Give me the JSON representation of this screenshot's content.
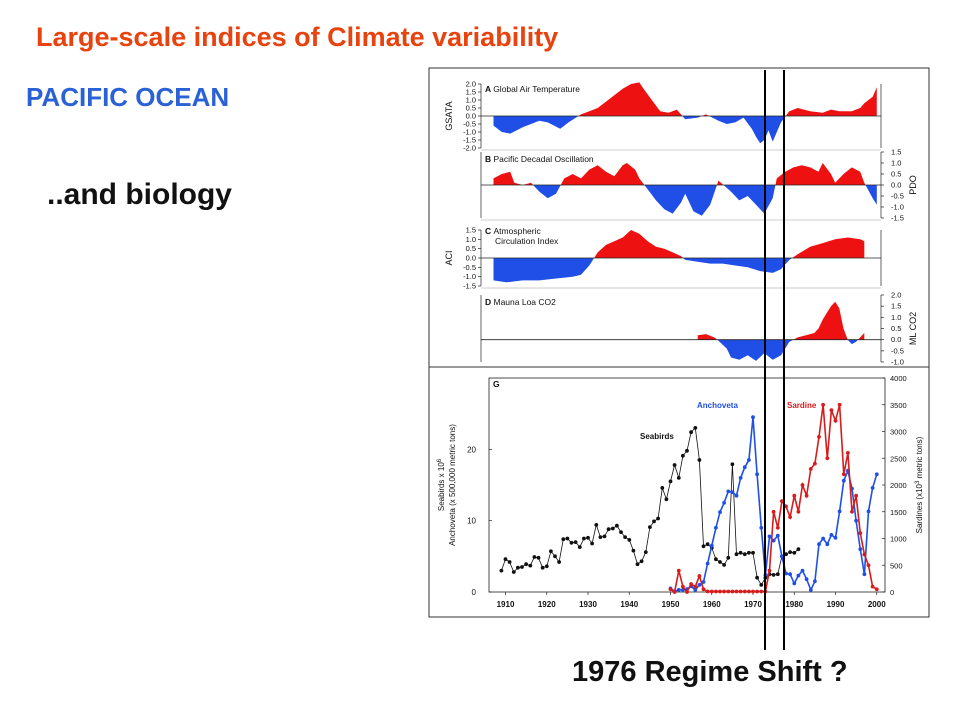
{
  "slide": {
    "title": "Large-scale indices of Climate variability",
    "subtitle": "PACIFIC OCEAN",
    "biology_caption": "..and biology",
    "regime_caption": "1976 Regime Shift ?"
  },
  "colors": {
    "title": "#e8420f",
    "subtitle": "#2a61d6",
    "positive_fill": "#ee1111",
    "negative_fill": "#1f4fe6",
    "seabirds": "#111111",
    "anchoveta": "#1f4fe6",
    "sardine": "#d81b1b"
  },
  "chart_data": [
    {
      "type": "area",
      "panel": "A",
      "title": "Global Air Temperature",
      "ylabel": "GSATA",
      "ylim": [
        -2.0,
        2.0
      ],
      "yticks": [
        "2.0",
        "1.5",
        "1.0",
        "0.5",
        "0.0",
        "-0.5",
        "-1.0",
        "-1.5",
        "-2.0"
      ],
      "tick_side": "left",
      "grid": false,
      "x": [
        1909,
        1911,
        1913,
        1916,
        1918,
        1920,
        1922,
        1925,
        1927,
        1930,
        1932,
        1934,
        1936,
        1938,
        1940,
        1942,
        1944,
        1945,
        1947,
        1949,
        1951,
        1953,
        1955,
        1958,
        1960,
        1963,
        1965,
        1967,
        1969,
        1971,
        1972,
        1973,
        1974,
        1975,
        1976,
        1977,
        1978,
        1980,
        1982,
        1985,
        1988,
        1990,
        1992,
        1995,
        1997,
        1998,
        2000,
        2001
      ],
      "values": [
        -0.6,
        -1.0,
        -1.1,
        -0.7,
        -0.5,
        -0.3,
        -0.4,
        -0.8,
        -0.4,
        0.1,
        0.3,
        0.5,
        0.9,
        1.3,
        1.7,
        2.0,
        2.1,
        1.7,
        1.0,
        0.3,
        0.2,
        0.4,
        -0.2,
        -0.1,
        0.1,
        -0.3,
        -0.5,
        -0.4,
        -0.1,
        -0.8,
        -1.3,
        -1.7,
        -1.5,
        -0.9,
        -1.6,
        -1.0,
        -0.4,
        0.3,
        0.5,
        0.3,
        0.2,
        0.4,
        0.3,
        0.3,
        0.5,
        0.8,
        1.2,
        1.8
      ]
    },
    {
      "type": "area",
      "panel": "B",
      "title": "Pacific Decadal Oscillation",
      "ylabel": "PDO",
      "ylim": [
        -1.5,
        1.5
      ],
      "yticks": [
        "1.5",
        "1.0",
        "0.5",
        "0.0",
        "-0.5",
        "-1.0",
        "-1.5"
      ],
      "tick_side": "right",
      "grid": false,
      "x": [
        1909,
        1911,
        1913,
        1914,
        1916,
        1918,
        1920,
        1922,
        1924,
        1926,
        1928,
        1930,
        1932,
        1934,
        1936,
        1938,
        1940,
        1941,
        1943,
        1944,
        1946,
        1948,
        1950,
        1952,
        1954,
        1955,
        1957,
        1959,
        1961,
        1963,
        1966,
        1968,
        1970,
        1972,
        1974,
        1976,
        1977,
        1979,
        1981,
        1983,
        1985,
        1987,
        1988,
        1990,
        1991,
        1993,
        1995,
        1997,
        1998,
        2000,
        2001
      ],
      "values": [
        0.3,
        0.5,
        0.6,
        0.1,
        0.0,
        0.1,
        -0.3,
        -0.6,
        -0.4,
        0.3,
        0.5,
        0.3,
        0.7,
        0.9,
        0.6,
        0.4,
        0.9,
        1.0,
        0.7,
        0.3,
        -0.2,
        -0.7,
        -1.1,
        -1.3,
        -0.8,
        -0.4,
        -1.2,
        -1.4,
        -0.9,
        0.2,
        -0.3,
        -0.7,
        -0.5,
        -0.9,
        -1.3,
        -0.6,
        0.3,
        0.6,
        0.8,
        0.9,
        0.8,
        0.6,
        1.0,
        0.5,
        0.1,
        0.5,
        0.8,
        0.6,
        0.1,
        -0.6,
        -0.9
      ]
    },
    {
      "type": "area",
      "panel": "C",
      "title": "Atmospheric Circulation Index",
      "title_lines": [
        "Atmospheric",
        "Circulation Index"
      ],
      "ylabel": "ACI",
      "ylim": [
        -1.5,
        1.5
      ],
      "yticks": [
        "1.5",
        "1.0",
        "0.5",
        "0.0",
        "-0.5",
        "-1.0",
        "-1.5"
      ],
      "tick_side": "left",
      "grid": false,
      "x": [
        1909,
        1912,
        1916,
        1920,
        1924,
        1928,
        1930,
        1932,
        1934,
        1936,
        1938,
        1940,
        1942,
        1944,
        1946,
        1948,
        1950,
        1952,
        1954,
        1955,
        1958,
        1961,
        1964,
        1967,
        1970,
        1973,
        1976,
        1978,
        1980,
        1982,
        1985,
        1988,
        1991,
        1994,
        1997,
        1998
      ],
      "values": [
        -1.2,
        -1.3,
        -1.2,
        -1.2,
        -1.1,
        -1.0,
        -0.9,
        -0.4,
        0.3,
        0.7,
        0.9,
        1.1,
        1.5,
        1.3,
        0.9,
        0.6,
        0.5,
        0.3,
        0.1,
        -0.1,
        -0.2,
        -0.3,
        -0.3,
        -0.4,
        -0.5,
        -0.7,
        -0.8,
        -0.6,
        -0.1,
        0.2,
        0.6,
        0.8,
        1.0,
        1.1,
        1.0,
        0.9
      ]
    },
    {
      "type": "area",
      "panel": "D",
      "title": "Mauna Loa CO2",
      "ylabel": "ML CO2",
      "ylim": [
        -1.0,
        2.0
      ],
      "yticks": [
        "2.0",
        "1.5",
        "1.0",
        "0.5",
        "0.0",
        "-0.5",
        "-1.0"
      ],
      "tick_side": "right",
      "grid": false,
      "x": [
        1958,
        1960,
        1962,
        1963,
        1965,
        1966,
        1968,
        1970,
        1972,
        1974,
        1976,
        1978,
        1980,
        1982,
        1984,
        1986,
        1987,
        1988,
        1989,
        1990,
        1991,
        1992,
        1993,
        1994,
        1995,
        1996,
        1997,
        1998
      ],
      "values": [
        0.2,
        0.25,
        0.1,
        -0.05,
        -0.4,
        -0.8,
        -0.9,
        -0.7,
        -0.95,
        -0.6,
        -0.9,
        -0.7,
        -0.1,
        0.1,
        0.2,
        0.3,
        0.5,
        0.9,
        1.2,
        1.5,
        1.7,
        1.4,
        0.5,
        0.0,
        -0.2,
        -0.1,
        0.1,
        0.3
      ]
    },
    {
      "type": "line",
      "panel": "G",
      "xlabel": "",
      "xlim": [
        1906,
        2002
      ],
      "xticks": [
        "1910",
        "1920",
        "1930",
        "1940",
        "1950",
        "1960",
        "1970",
        "1980",
        "1990",
        "2000"
      ],
      "left_axis": {
        "label_line1": "Seabirds x 10",
        "label_sup": "6",
        "label_line2": "Anchoveta (x 500,000 metric tons)",
        "ylim": [
          0,
          30
        ],
        "ticks": [
          "0",
          "10",
          "20"
        ]
      },
      "right_axis": {
        "label_pre": "Sardines (x10",
        "label_sup": "3",
        "label_post": " metric tons)",
        "ylim": [
          0,
          4000
        ],
        "ticks": [
          "0",
          "500",
          "1000",
          "1500",
          "2000",
          "2500",
          "3000",
          "3500",
          "4000"
        ]
      },
      "series": [
        {
          "name": "Seabirds",
          "axis": "left",
          "x": [
            1909,
            1910,
            1911,
            1912,
            1913,
            1914,
            1915,
            1916,
            1917,
            1918,
            1919,
            1920,
            1921,
            1922,
            1923,
            1924,
            1925,
            1926,
            1927,
            1928,
            1929,
            1930,
            1931,
            1932,
            1933,
            1934,
            1935,
            1936,
            1937,
            1938,
            1939,
            1940,
            1941,
            1942,
            1943,
            1944,
            1945,
            1946,
            1947,
            1948,
            1949,
            1950,
            1951,
            1952,
            1953,
            1954,
            1955,
            1956,
            1957,
            1958,
            1959,
            1960,
            1961,
            1962,
            1963,
            1964,
            1965,
            1966,
            1967,
            1968,
            1969,
            1970,
            1971,
            1972,
            1973,
            1974,
            1975,
            1976,
            1977,
            1978,
            1979,
            1980,
            1981
          ],
          "values": [
            3.0,
            4.6,
            4.2,
            2.8,
            3.4,
            3.5,
            3.9,
            3.7,
            4.9,
            4.8,
            3.4,
            3.6,
            5.7,
            5.0,
            4.2,
            7.4,
            7.5,
            6.9,
            7.0,
            6.3,
            7.5,
            7.6,
            6.8,
            9.4,
            7.7,
            7.8,
            8.8,
            8.9,
            9.3,
            8.4,
            7.7,
            7.3,
            5.8,
            3.9,
            4.3,
            5.6,
            9.1,
            9.9,
            10.3,
            14.6,
            13.0,
            15.5,
            17.8,
            16.0,
            19.1,
            19.8,
            22.4,
            23.0,
            18.5,
            6.4,
            6.7,
            6.2,
            4.6,
            4.2,
            3.8,
            4.8,
            17.9,
            5.3,
            5.5,
            5.3,
            5.5,
            5.5,
            2.0,
            1.0,
            2.0,
            2.5,
            2.4,
            2.5,
            5.0,
            5.3,
            5.6,
            5.5,
            6.0
          ]
        },
        {
          "name": "Anchoveta",
          "axis": "left",
          "x": [
            1950,
            1951,
            1952,
            1953,
            1954,
            1955,
            1956,
            1957,
            1958,
            1959,
            1960,
            1961,
            1962,
            1963,
            1964,
            1965,
            1966,
            1967,
            1968,
            1969,
            1970,
            1971,
            1972,
            1973,
            1974,
            1975,
            1976,
            1977,
            1978,
            1979,
            1980,
            1981,
            1982,
            1983,
            1984,
            1985,
            1986,
            1987,
            1988,
            1989,
            1990,
            1991,
            1992,
            1993,
            1994,
            1995,
            1996,
            1997,
            1998,
            1999,
            2000
          ],
          "values": [
            0.5,
            0.1,
            0.3,
            0.3,
            0.4,
            0.8,
            0.3,
            1.0,
            1.4,
            4.0,
            6.5,
            9.0,
            11.2,
            12.5,
            14.1,
            14.0,
            13.5,
            16.0,
            17.5,
            18.5,
            24.5,
            16.5,
            9.0,
            2.4,
            7.8,
            7.2,
            7.9,
            5.0,
            2.6,
            2.5,
            1.2,
            2.3,
            3.0,
            1.8,
            0.3,
            1.5,
            6.7,
            7.5,
            6.7,
            8.0,
            7.6,
            11.3,
            15.6,
            17.0,
            14.5,
            10.0,
            6.0,
            2.5,
            11.3,
            14.6,
            16.5
          ]
        },
        {
          "name": "Sardine",
          "axis": "right",
          "x": [
            1950,
            1951,
            1952,
            1953,
            1954,
            1955,
            1956,
            1957,
            1958,
            1959,
            1960,
            1961,
            1962,
            1963,
            1964,
            1965,
            1966,
            1967,
            1968,
            1969,
            1970,
            1971,
            1972,
            1973,
            1974,
            1975,
            1976,
            1977,
            1978,
            1979,
            1980,
            1981,
            1982,
            1983,
            1984,
            1985,
            1986,
            1987,
            1988,
            1989,
            1990,
            1991,
            1992,
            1993,
            1994,
            1995,
            1996,
            1997,
            1998,
            1999,
            2000
          ],
          "values": [
            50,
            0,
            400,
            100,
            0,
            150,
            100,
            300,
            50,
            10,
            10,
            10,
            10,
            10,
            10,
            10,
            10,
            10,
            10,
            10,
            10,
            10,
            10,
            10,
            400,
            1500,
            1200,
            1700,
            1600,
            1400,
            1800,
            1500,
            2000,
            1800,
            2300,
            2400,
            2900,
            3500,
            2500,
            3400,
            3200,
            3500,
            2200,
            2600,
            1500,
            1800,
            1100,
            700,
            500,
            100,
            50
          ]
        }
      ],
      "annotations": [
        "Seabirds",
        "Anchoveta",
        "Sardine"
      ]
    }
  ]
}
